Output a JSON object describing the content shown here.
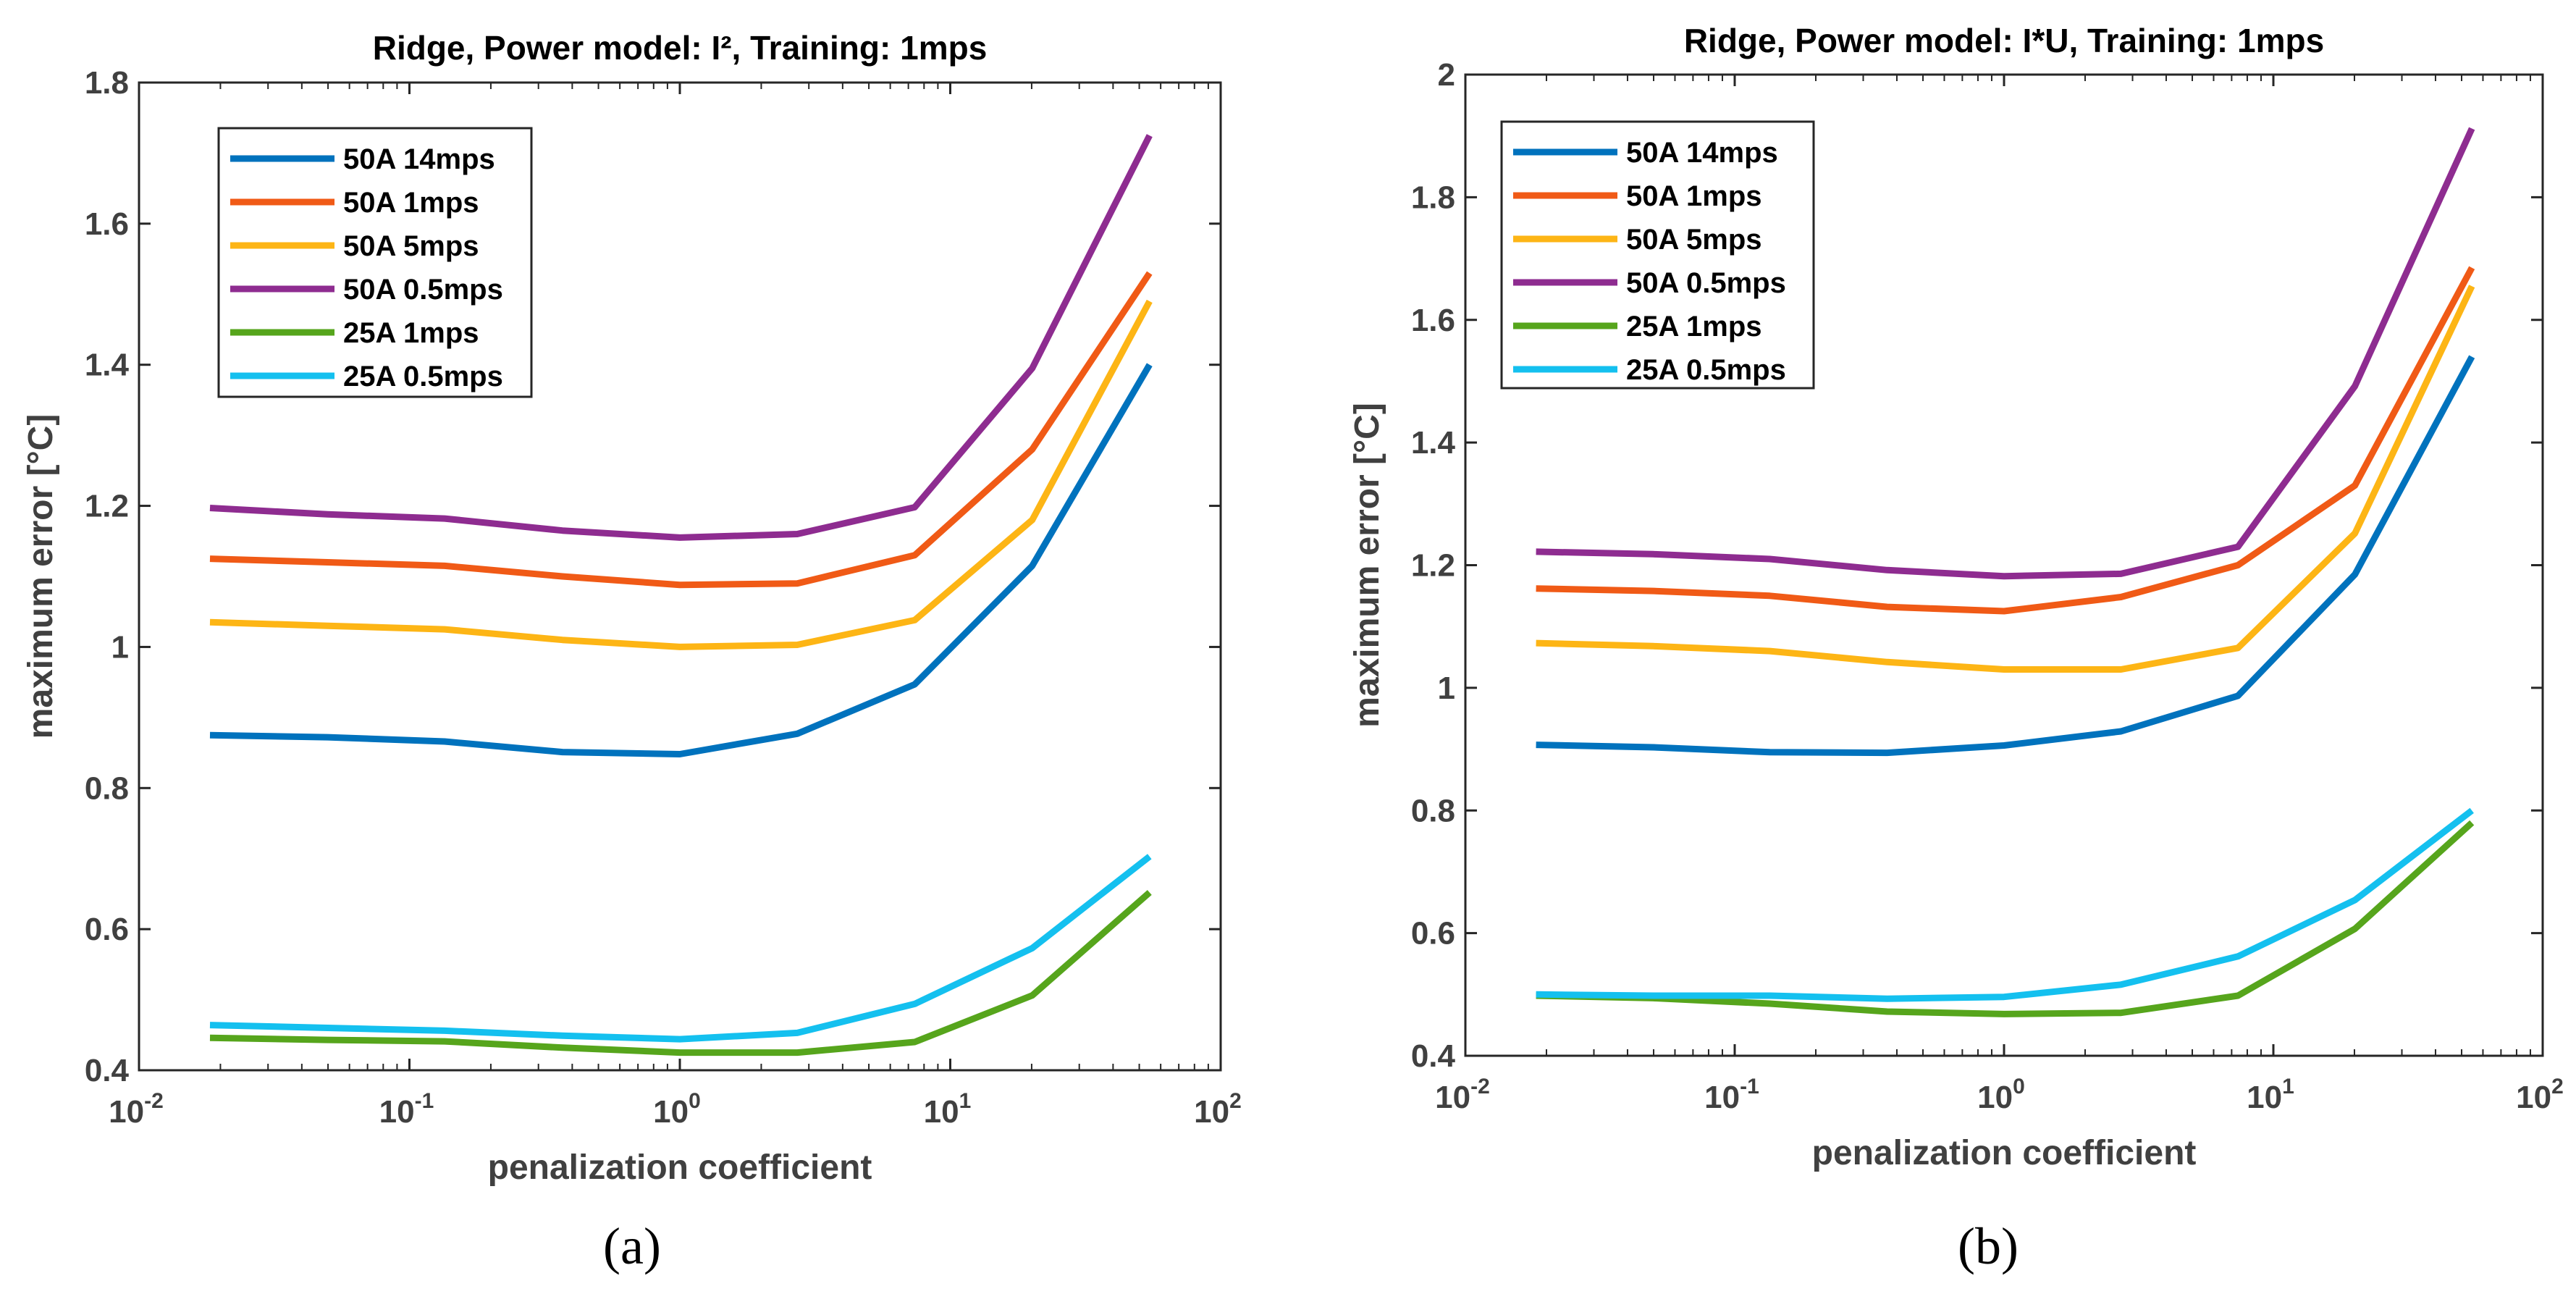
{
  "chart_data": [
    {
      "type": "line",
      "panel": "a",
      "caption": "(a)",
      "title": "Ridge, Power model: I², Training: 1mps",
      "xlabel": "penalization coefficient",
      "ylabel": "maximum error [°C]",
      "xscale": "log",
      "xlim": [
        0.01,
        100
      ],
      "ylim": [
        0.4,
        1.8
      ],
      "xtick_exponents": [
        -2,
        -1,
        0,
        1,
        2
      ],
      "yticks": [
        "0.4",
        "0.6",
        "0.8",
        "1",
        "1.2",
        "1.4",
        "1.6",
        "1.8"
      ],
      "legend_position": "top-left",
      "x": [
        0.0183,
        0.0498,
        0.135,
        0.368,
        1,
        2.718,
        7.389,
        20.09,
        54.6
      ],
      "series": [
        {
          "name": "50A 14mps",
          "color": "#0072BD",
          "values": [
            0.875,
            0.872,
            0.866,
            0.851,
            0.848,
            0.877,
            0.947,
            1.115,
            1.4
          ]
        },
        {
          "name": "50A 1mps",
          "color": "#F05A16",
          "values": [
            1.125,
            1.12,
            1.115,
            1.1,
            1.088,
            1.09,
            1.13,
            1.28,
            1.53
          ]
        },
        {
          "name": "50A 5mps",
          "color": "#FDB515",
          "values": [
            1.035,
            1.03,
            1.025,
            1.01,
            1.0,
            1.003,
            1.038,
            1.18,
            1.49
          ]
        },
        {
          "name": "50A 0.5mps",
          "color": "#8E2C90",
          "values": [
            1.197,
            1.188,
            1.182,
            1.165,
            1.155,
            1.16,
            1.198,
            1.395,
            1.725
          ]
        },
        {
          "name": "25A 1mps",
          "color": "#56A51C",
          "values": [
            0.446,
            0.443,
            0.441,
            0.432,
            0.425,
            0.425,
            0.44,
            0.506,
            0.652
          ]
        },
        {
          "name": "25A 0.5mps",
          "color": "#14C0EF",
          "values": [
            0.464,
            0.46,
            0.456,
            0.449,
            0.444,
            0.453,
            0.494,
            0.573,
            0.703
          ]
        }
      ]
    },
    {
      "type": "line",
      "panel": "b",
      "caption": "(b)",
      "title": "Ridge, Power model: I*U, Training: 1mps",
      "xlabel": "penalization coefficient",
      "ylabel": "maximum error [°C]",
      "xscale": "log",
      "xlim": [
        0.01,
        100
      ],
      "ylim": [
        0.4,
        2.0
      ],
      "xtick_exponents": [
        -2,
        -1,
        0,
        1,
        2
      ],
      "yticks": [
        "0.4",
        "0.6",
        "0.8",
        "1",
        "1.2",
        "1.4",
        "1.6",
        "1.8",
        "2"
      ],
      "legend_position": "top-left",
      "x": [
        0.0183,
        0.0498,
        0.135,
        0.368,
        1,
        2.718,
        7.389,
        20.09,
        54.6
      ],
      "series": [
        {
          "name": "50A 14mps",
          "color": "#0072BD",
          "values": [
            0.907,
            0.903,
            0.895,
            0.894,
            0.906,
            0.929,
            0.987,
            1.185,
            1.54
          ]
        },
        {
          "name": "50A 1mps",
          "color": "#F05A16",
          "values": [
            1.162,
            1.158,
            1.15,
            1.132,
            1.125,
            1.148,
            1.2,
            1.33,
            1.685
          ]
        },
        {
          "name": "50A 5mps",
          "color": "#FDB515",
          "values": [
            1.073,
            1.068,
            1.06,
            1.042,
            1.03,
            1.03,
            1.065,
            1.252,
            1.655
          ]
        },
        {
          "name": "50A 0.5mps",
          "color": "#8E2C90",
          "values": [
            1.222,
            1.218,
            1.21,
            1.192,
            1.182,
            1.186,
            1.23,
            1.492,
            1.912
          ]
        },
        {
          "name": "25A 1mps",
          "color": "#56A51C",
          "values": [
            0.498,
            0.494,
            0.485,
            0.472,
            0.468,
            0.47,
            0.498,
            0.607,
            0.78
          ]
        },
        {
          "name": "25A 0.5mps",
          "color": "#14C0EF",
          "values": [
            0.5,
            0.498,
            0.498,
            0.493,
            0.496,
            0.516,
            0.562,
            0.654,
            0.8
          ]
        }
      ]
    }
  ]
}
